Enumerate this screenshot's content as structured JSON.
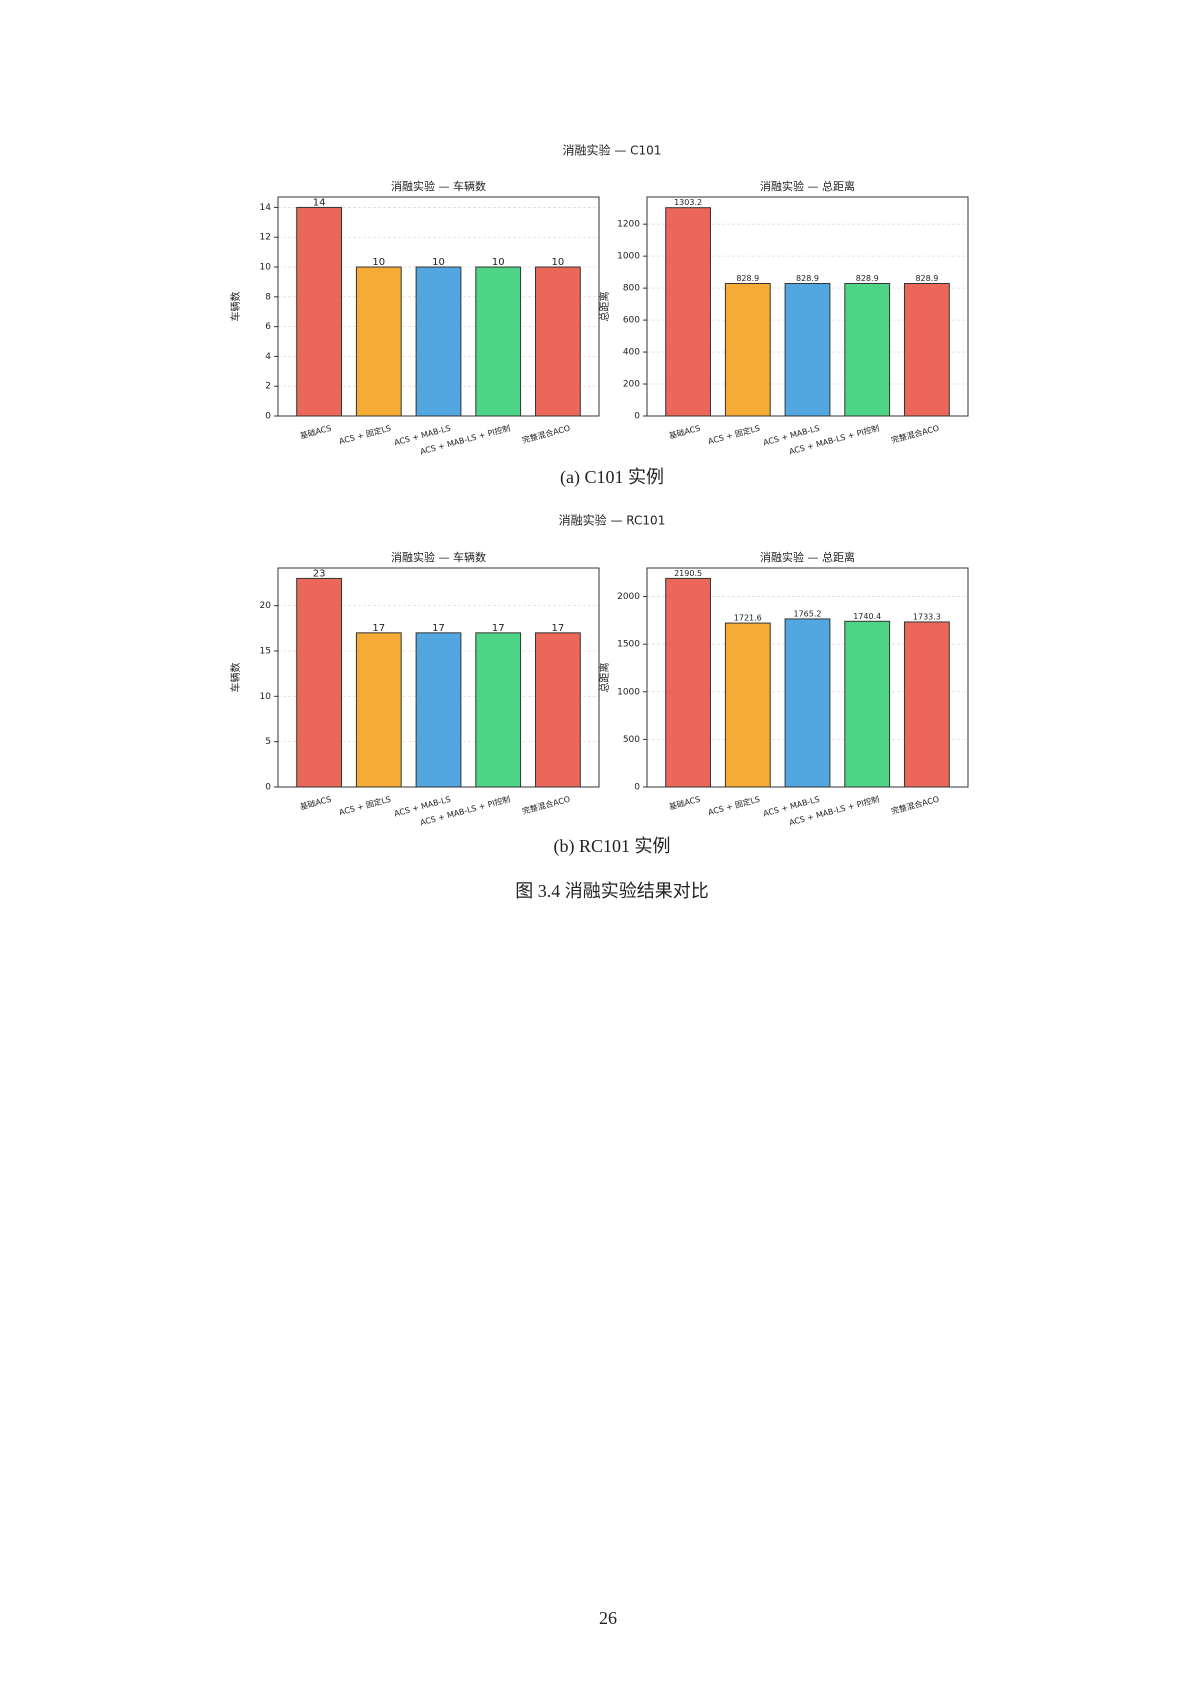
{
  "suptitles": [
    "消融实验 — C101",
    "消融实验 — RC101"
  ],
  "subcaptions": [
    "(a) C101 实例",
    "(b) RC101 实例"
  ],
  "caption": "图 3.4 消融实验结果对比",
  "page_number": "26",
  "chart_data": [
    {
      "type": "bar",
      "title": "消融实验 — 车辆数",
      "ylabel": "车辆数",
      "categories": [
        "基础ACS",
        "ACS + 固定LS",
        "ACS + MAB-LS",
        "ACS + MAB-LS + PI控制",
        "完整混合ACO"
      ],
      "values": [
        14,
        10,
        10,
        10,
        10
      ],
      "colors": [
        "#e74c3c",
        "#f39c12",
        "#3498db",
        "#2ecc71",
        "#e74c3c"
      ],
      "ylim": [
        0,
        14.7
      ],
      "yticks": [
        0,
        2,
        4,
        6,
        8,
        10,
        12,
        14
      ],
      "grid": true
    },
    {
      "type": "bar",
      "title": "消融实验 — 总距离",
      "ylabel": "总距离",
      "categories": [
        "基础ACS",
        "ACS + 固定LS",
        "ACS + MAB-LS",
        "ACS + MAB-LS + PI控制",
        "完整混合ACO"
      ],
      "values": [
        1303.2,
        828.9,
        828.9,
        828.9,
        828.9
      ],
      "colors": [
        "#e74c3c",
        "#f39c12",
        "#3498db",
        "#2ecc71",
        "#e74c3c"
      ],
      "ylim": [
        0,
        1370
      ],
      "yticks": [
        0,
        200,
        400,
        600,
        800,
        1000,
        1200
      ],
      "grid": true
    },
    {
      "type": "bar",
      "title": "消融实验 — 车辆数",
      "ylabel": "车辆数",
      "categories": [
        "基础ACS",
        "ACS + 固定LS",
        "ACS + MAB-LS",
        "ACS + MAB-LS + PI控制",
        "完整混合ACO"
      ],
      "values": [
        23,
        17,
        17,
        17,
        17
      ],
      "colors": [
        "#e74c3c",
        "#f39c12",
        "#3498db",
        "#2ecc71",
        "#e74c3c"
      ],
      "ylim": [
        0,
        24.15
      ],
      "yticks": [
        0,
        5,
        10,
        15,
        20
      ],
      "grid": true
    },
    {
      "type": "bar",
      "title": "消融实验 — 总距离",
      "ylabel": "总距离",
      "categories": [
        "基础ACS",
        "ACS + 固定LS",
        "ACS + MAB-LS",
        "ACS + MAB-LS + PI控制",
        "完整混合ACO"
      ],
      "values": [
        2190.5,
        1721.6,
        1765.2,
        1740.4,
        1733.3
      ],
      "colors": [
        "#e74c3c",
        "#f39c12",
        "#3498db",
        "#2ecc71",
        "#e74c3c"
      ],
      "ylim": [
        0,
        2300
      ],
      "yticks": [
        0,
        500,
        1000,
        1500,
        2000
      ],
      "grid": true
    }
  ]
}
